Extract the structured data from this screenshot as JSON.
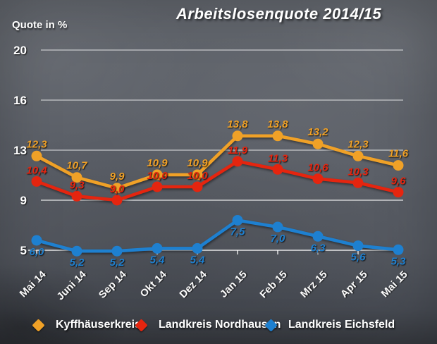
{
  "title": "Arbeitslosenquote 2014/15",
  "y_axis_title": "Quote in %",
  "colors": {
    "background": "#5b5f67",
    "text": "#ffffff",
    "gridline": "#ffffff",
    "kyffhaeuserkreis": "#f0a127",
    "nordhausen": "#e5250f",
    "eichsfeld": "#1e80d0"
  },
  "chart_data": {
    "type": "line",
    "title": "Arbeitslosenquote 2014/15",
    "ylabel": "Quote in %",
    "xlabel": "",
    "grid": "horizontal",
    "legend_position": "bottom",
    "ylim": [
      5,
      20
    ],
    "y_ticks": [
      20,
      16,
      13,
      9,
      5
    ],
    "categories": [
      "Mai 14",
      "Juni 14",
      "Sep 14",
      "Okt 14",
      "Dez 14",
      "Jan 15",
      "Feb 15",
      "Mrz 15",
      "Apr 15",
      "Mai 15"
    ],
    "series": [
      {
        "name": "Kyffhäuserkreis",
        "color": "#f0a127",
        "values": [
          12.3,
          10.7,
          9.9,
          10.9,
          10.9,
          13.8,
          13.8,
          13.2,
          12.3,
          11.6
        ],
        "labels": [
          "12,3",
          "10,7",
          "9,9",
          "10,9",
          "10,9",
          "13,8",
          "13,8",
          "13,2",
          "12,3",
          "11,6"
        ]
      },
      {
        "name": "Landkreis Nordhausen",
        "color": "#e5250f",
        "values": [
          10.4,
          9.3,
          9.0,
          10.0,
          10.0,
          11.9,
          11.3,
          10.6,
          10.3,
          9.6
        ],
        "labels": [
          "10,4",
          "9,3",
          "9,0",
          "10,0",
          "10,0",
          "11,9",
          "11,3",
          "10,6",
          "10,3",
          "9,6"
        ]
      },
      {
        "name": "Landkreis Eichsfeld",
        "color": "#1e80d0",
        "values": [
          6.0,
          5.2,
          5.2,
          5.4,
          5.4,
          7.5,
          7.0,
          6.3,
          5.6,
          5.3
        ],
        "labels": [
          "6,0",
          "5,2",
          "5,2",
          "5,4",
          "5,4",
          "7,5",
          "7,0",
          "6,3",
          "5,6",
          "5,3"
        ]
      }
    ]
  },
  "legend": {
    "items": [
      {
        "label": "Kyffhäuserkreis",
        "color": "#f0a127"
      },
      {
        "label": "Landkreis Nordhausen",
        "color": "#e5250f"
      },
      {
        "label": "Landkreis Eichsfeld",
        "color": "#1e80d0"
      }
    ]
  }
}
